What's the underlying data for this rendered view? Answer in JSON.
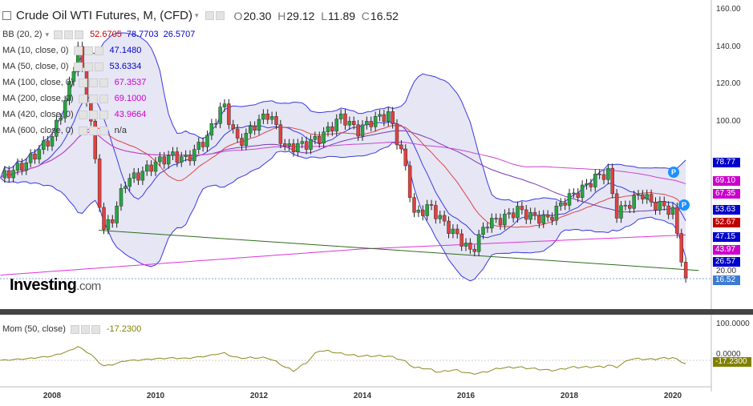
{
  "header": {
    "title": "Crude Oil WTI Futures, M, (CFD)",
    "o_label": "O",
    "o_value": "20.30",
    "h_label": "H",
    "h_value": "29.12",
    "l_label": "L",
    "l_value": "11.89",
    "c_label": "C",
    "c_value": "16.52"
  },
  "indicators": [
    {
      "label": "BB (20, 2)",
      "values": [
        "52.6705",
        "78.7703",
        "26.5707"
      ],
      "colors": [
        "#c00000",
        "#0000cc",
        "#0000cc"
      ]
    },
    {
      "label": "MA (10, close, 0)",
      "values": [
        "47.1480"
      ],
      "colors": [
        "#0000cc"
      ]
    },
    {
      "label": "MA (50, close, 0)",
      "values": [
        "53.6334"
      ],
      "colors": [
        "#0000cc"
      ]
    },
    {
      "label": "MA (100, close, 0)",
      "values": [
        "67.3537"
      ],
      "colors": [
        "#cc00cc"
      ]
    },
    {
      "label": "MA (200, close, 0)",
      "values": [
        "69.1000"
      ],
      "colors": [
        "#cc00cc"
      ]
    },
    {
      "label": "MA (420, close, 0)",
      "values": [
        "43.9664"
      ],
      "colors": [
        "#cc00cc"
      ]
    },
    {
      "label": "MA (600, close, 0)",
      "values": [
        "n/a"
      ],
      "colors": [
        "#333333"
      ]
    }
  ],
  "oscillator": {
    "label": "Mom (50, close)",
    "value": "-17.2300"
  },
  "branding": {
    "logo": "Investing",
    "logo_suffix": ".com"
  },
  "badges": [
    "P",
    "P"
  ],
  "price_axis": [
    "160.00",
    "140.00",
    "120.00",
    "100.00",
    "20.00"
  ],
  "osc_axis": [
    "100.0000",
    "0.0000"
  ],
  "price_tags": [
    {
      "label": "78.77",
      "value": 78.77,
      "color": "#0000cc"
    },
    {
      "label": "69.10",
      "value": 69.1,
      "color": "#cc00cc"
    },
    {
      "label": "67.35",
      "value": 67.35,
      "color": "#cc00cc"
    },
    {
      "label": "53.63",
      "value": 53.63,
      "color": "#0000cc"
    },
    {
      "label": "52.67",
      "value": 52.67,
      "color": "#c00000"
    },
    {
      "label": "47.15",
      "value": 47.15,
      "color": "#0000cc"
    },
    {
      "label": "43.97",
      "value": 43.97,
      "color": "#cc00cc"
    },
    {
      "label": "26.57",
      "value": 26.57,
      "color": "#0000cc"
    },
    {
      "label": "16.52",
      "value": 16.52,
      "color": "#3b7bd4"
    }
  ],
  "osc_tag": {
    "label": "-17.2300",
    "value": -17.23,
    "color": "#808000"
  },
  "colors": {
    "up": "#26a641",
    "down": "#e0413e",
    "band_fill": "#e6e6f5",
    "band_line": "#3a3ae0",
    "trend": "#2d6b1c",
    "mom": "#8a8a20"
  },
  "chart_data": {
    "type": "line",
    "x_ticks": [
      "2008",
      "2010",
      "2012",
      "2014",
      "2016",
      "2018",
      "2020"
    ],
    "ylim": [
      15,
      160
    ],
    "series": [
      {
        "values": [
          [
            2007.0,
            70
          ],
          [
            2007.5,
            78
          ],
          [
            2008.0,
            92
          ],
          [
            2008.3,
            115
          ],
          [
            2008.5,
            140
          ],
          [
            2008.75,
            100
          ],
          [
            2008.9,
            60
          ],
          [
            2009.0,
            42
          ],
          [
            2009.2,
            50
          ],
          [
            2009.4,
            68
          ],
          [
            2009.7,
            72
          ],
          [
            2010.0,
            78
          ],
          [
            2010.3,
            82
          ],
          [
            2010.6,
            80
          ],
          [
            2011.0,
            92
          ],
          [
            2011.3,
            110
          ],
          [
            2011.6,
            88
          ],
          [
            2011.9,
            98
          ],
          [
            2012.2,
            105
          ],
          [
            2012.5,
            86
          ],
          [
            2012.9,
            88
          ],
          [
            2013.2,
            92
          ],
          [
            2013.6,
            103
          ],
          [
            2013.9,
            95
          ],
          [
            2014.2,
            101
          ],
          [
            2014.5,
            104
          ],
          [
            2014.8,
            80
          ],
          [
            2015.0,
            50
          ],
          [
            2015.3,
            55
          ],
          [
            2015.6,
            45
          ],
          [
            2015.9,
            37
          ],
          [
            2016.1,
            30
          ],
          [
            2016.4,
            46
          ],
          [
            2016.7,
            48
          ],
          [
            2017.0,
            53
          ],
          [
            2017.3,
            49
          ],
          [
            2017.6,
            48
          ],
          [
            2017.9,
            58
          ],
          [
            2018.2,
            63
          ],
          [
            2018.5,
            70
          ],
          [
            2018.75,
            73
          ],
          [
            2018.9,
            51
          ],
          [
            2019.1,
            55
          ],
          [
            2019.4,
            62
          ],
          [
            2019.6,
            56
          ],
          [
            2019.8,
            55
          ],
          [
            2020.0,
            52
          ],
          [
            2020.15,
            30
          ],
          [
            2020.25,
            16.52
          ]
        ]
      }
    ]
  }
}
